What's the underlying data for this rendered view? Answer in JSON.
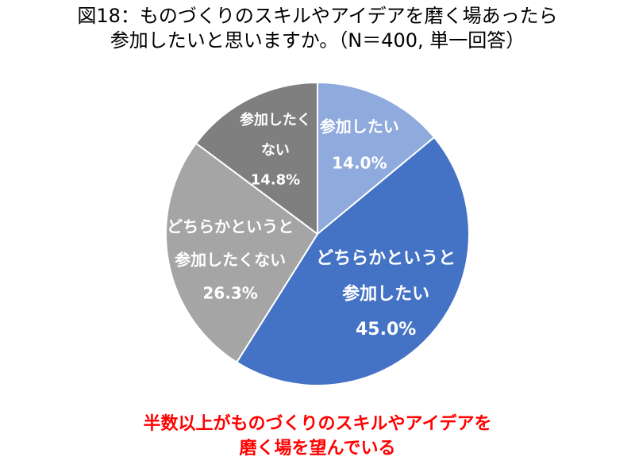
{
  "chart_data": {
    "type": "pie",
    "title": [
      "図18：ものづくりのスキルやアイデアを磨く場あったら",
      "参加したいと思いますか。（N＝400, 単一回答）"
    ],
    "categories": [
      "参加したい",
      "どちらかというと参加したい",
      "どちらかというと参加したくない",
      "参加したくない"
    ],
    "values": [
      14.0,
      45.0,
      26.3,
      14.8
    ],
    "unit": "%",
    "colors": [
      "#8FAADC",
      "#4472C4",
      "#A5A5A5",
      "#7F7F7F"
    ],
    "label_color": "#FFFFFF",
    "annotation": [
      "半数以上がものづくりのスキルやアイデアを",
      "磨く場を望んでいる"
    ],
    "annotation_color": "#FF0000"
  }
}
